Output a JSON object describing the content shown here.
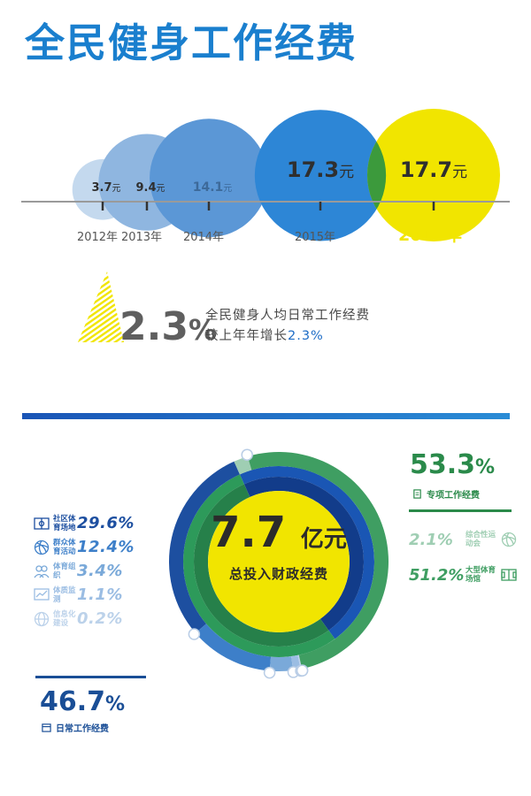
{
  "title": "全民健身工作经费",
  "chart_data": [
    {
      "type": "bubble",
      "categories": [
        "2012年",
        "2013年",
        "2014年",
        "2015年",
        "2016年"
      ],
      "values": [
        3.7,
        9.4,
        14.1,
        17.3,
        17.7
      ],
      "value_labels": [
        "3.7",
        "9.4",
        "14.1",
        "17.3",
        "17.7"
      ],
      "unit": "元",
      "colors": [
        "#c4d9ee",
        "#8fb6e0",
        "#5b97d6",
        "#2d86d6",
        "#f1e500"
      ]
    },
    {
      "type": "pie",
      "center_value": "7.7",
      "center_unit": "亿元",
      "center_label": "总投入财政经费",
      "groups": [
        {
          "name": "日常工作经费",
          "total": "46.7",
          "color": "#1a4e96",
          "items": [
            {
              "label": "社区体育场地",
              "value": 29.6,
              "display": "29.6",
              "icon": "field-icon",
              "color": "#1d4fa0"
            },
            {
              "label": "群众体育活动",
              "value": 12.4,
              "display": "12.4",
              "icon": "ball-icon",
              "color": "#3d7fc9"
            },
            {
              "label": "体育组织",
              "value": 3.4,
              "display": "3.4",
              "icon": "people-icon",
              "color": "#7aa9d9"
            },
            {
              "label": "体质监测",
              "value": 1.1,
              "display": "1.1",
              "icon": "chart-icon",
              "color": "#9bbde3"
            },
            {
              "label": "信息化建设",
              "value": 0.2,
              "display": "0.2",
              "icon": "globe-icon",
              "color": "#bcd2ea"
            }
          ]
        },
        {
          "name": "专项工作经费",
          "total": "53.3",
          "color": "#2a8a4a",
          "items": [
            {
              "label": "综合性运动会",
              "value": 2.1,
              "display": "2.1",
              "icon": "ball-icon",
              "color": "#9fceb3"
            },
            {
              "label": "大型体育场馆",
              "value": 51.2,
              "display": "51.2",
              "icon": "stadium-icon",
              "color": "#3f9e62"
            }
          ]
        }
      ]
    }
  ],
  "growth": {
    "value": "2.3",
    "pct": "%",
    "line1": "全民健身人均日常工作经费",
    "line2_prefix": "较上年年增长",
    "line2_value": "2.3%"
  },
  "pct_sign": "%"
}
